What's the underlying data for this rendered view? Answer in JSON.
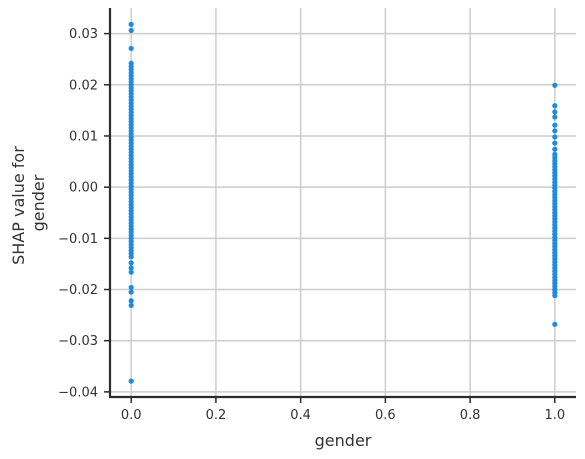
{
  "chart_data": {
    "type": "scatter",
    "xlabel": "gender",
    "ylabel_lines": [
      "SHAP value for",
      "gender"
    ],
    "xlim": [
      -0.05,
      1.05
    ],
    "ylim": [
      -0.041,
      0.035
    ],
    "x_ticks": [
      0.0,
      0.2,
      0.4,
      0.6,
      0.8,
      1.0
    ],
    "x_tick_labels": [
      "0.0",
      "0.2",
      "0.4",
      "0.6",
      "0.8",
      "1.0"
    ],
    "y_ticks": [
      0.03,
      0.02,
      0.01,
      0.0,
      -0.01,
      -0.02,
      -0.03,
      -0.04
    ],
    "y_tick_labels": [
      "0.03",
      "0.02",
      "0.01",
      "0.00",
      "−0.01",
      "−0.02",
      "−0.03",
      "−0.04"
    ],
    "grid": true,
    "point_color": "#1f8be0",
    "series": [
      {
        "x": 0.0,
        "y": [
          0.0318,
          0.0306,
          0.0271,
          0.0242,
          0.0236,
          0.023,
          0.0224,
          0.0218,
          0.0212,
          0.0206,
          0.02,
          0.0194,
          0.0188,
          0.0182,
          0.0176,
          0.017,
          0.0164,
          0.0158,
          0.0152,
          0.0146,
          0.014,
          0.0134,
          0.0128,
          0.0122,
          0.0116,
          0.011,
          0.0104,
          0.0098,
          0.0092,
          0.0086,
          0.008,
          0.0074,
          0.0068,
          0.0062,
          0.0056,
          0.005,
          0.0044,
          0.0038,
          0.0032,
          0.0026,
          0.002,
          0.0014,
          0.0008,
          0.0002,
          -0.0004,
          -0.001,
          -0.0016,
          -0.0022,
          -0.0028,
          -0.0034,
          -0.004,
          -0.0046,
          -0.0052,
          -0.0058,
          -0.0064,
          -0.007,
          -0.0076,
          -0.0082,
          -0.0088,
          -0.0094,
          -0.01,
          -0.0106,
          -0.0112,
          -0.0118,
          -0.0124,
          -0.013,
          -0.0136,
          -0.0148,
          -0.0158,
          -0.0166,
          -0.0196,
          -0.0205,
          -0.0222,
          -0.0231,
          -0.0379
        ]
      },
      {
        "x": 1.0,
        "y": [
          0.0199,
          0.0159,
          0.0147,
          0.0137,
          0.0121,
          0.011,
          0.0098,
          0.0086,
          0.0074,
          0.0064,
          0.0058,
          0.0052,
          0.0046,
          0.004,
          0.0034,
          0.0028,
          0.0022,
          0.0016,
          0.001,
          0.0004,
          -0.0002,
          -0.0008,
          -0.0014,
          -0.002,
          -0.0026,
          -0.0032,
          -0.0038,
          -0.0044,
          -0.005,
          -0.0056,
          -0.0062,
          -0.0068,
          -0.0074,
          -0.008,
          -0.0086,
          -0.0092,
          -0.0098,
          -0.0104,
          -0.011,
          -0.0116,
          -0.0122,
          -0.0128,
          -0.0134,
          -0.014,
          -0.0146,
          -0.0152,
          -0.0158,
          -0.0164,
          -0.017,
          -0.0176,
          -0.0182,
          -0.0188,
          -0.0194,
          -0.02,
          -0.0206,
          -0.0212,
          -0.0268
        ]
      }
    ]
  }
}
